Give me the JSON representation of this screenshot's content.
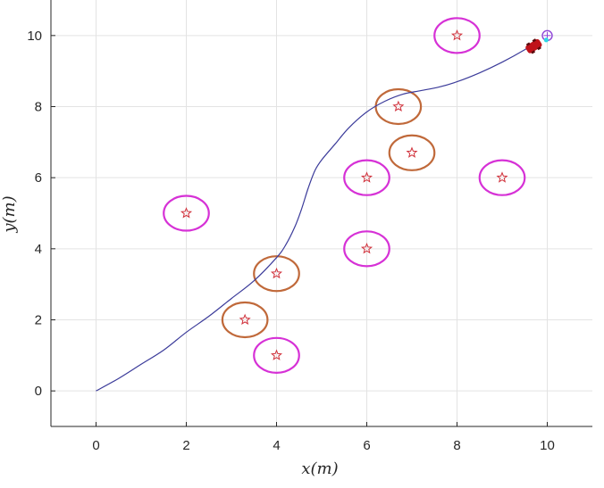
{
  "chart_data": {
    "type": "scatter",
    "title": "",
    "xlabel": "x(m)",
    "ylabel": "y(m)",
    "xlim": [
      -1,
      11
    ],
    "ylim": [
      -1,
      11
    ],
    "xticks": [
      0,
      2,
      4,
      6,
      8,
      10
    ],
    "yticks": [
      0,
      2,
      4,
      6,
      8,
      10
    ],
    "grid": true,
    "legend": "none",
    "colors": {
      "trajectory": "#3b3b9a",
      "magenta_circle": "#d631d6",
      "brown_circle": "#c0693a",
      "star": "#d0303a",
      "goal": "#8e44d8",
      "vehicle": "#c0121a",
      "vehicle_marker": "#30d7e6"
    },
    "obstacles": [
      {
        "x": 2.0,
        "y": 5.0,
        "r": 0.5,
        "type": "magenta"
      },
      {
        "x": 4.0,
        "y": 1.0,
        "r": 0.5,
        "type": "magenta"
      },
      {
        "x": 3.3,
        "y": 2.0,
        "r": 0.5,
        "type": "brown"
      },
      {
        "x": 4.0,
        "y": 3.3,
        "r": 0.5,
        "type": "brown"
      },
      {
        "x": 6.0,
        "y": 4.0,
        "r": 0.5,
        "type": "magenta"
      },
      {
        "x": 6.0,
        "y": 6.0,
        "r": 0.5,
        "type": "magenta"
      },
      {
        "x": 7.0,
        "y": 6.7,
        "r": 0.5,
        "type": "brown"
      },
      {
        "x": 6.7,
        "y": 8.0,
        "r": 0.5,
        "type": "brown"
      },
      {
        "x": 9.0,
        "y": 6.0,
        "r": 0.5,
        "type": "magenta"
      },
      {
        "x": 8.0,
        "y": 10.0,
        "r": 0.5,
        "type": "magenta"
      }
    ],
    "trajectory": {
      "x": [
        0,
        0.5,
        1.0,
        1.5,
        2.0,
        2.5,
        3.0,
        3.5,
        4.0,
        4.2,
        4.4,
        4.55,
        4.7,
        4.85,
        5.0,
        5.3,
        5.6,
        6.0,
        6.4,
        6.8,
        7.2,
        7.6,
        8.0,
        8.5,
        9.0,
        9.5,
        9.8
      ],
      "y": [
        0,
        0.35,
        0.75,
        1.15,
        1.65,
        2.1,
        2.6,
        3.1,
        3.75,
        4.1,
        4.6,
        5.1,
        5.7,
        6.2,
        6.5,
        6.95,
        7.4,
        7.85,
        8.15,
        8.35,
        8.45,
        8.55,
        8.7,
        8.95,
        9.25,
        9.6,
        9.85
      ]
    },
    "vehicle": {
      "x": 9.7,
      "y": 9.7
    },
    "goal": {
      "x": 10.0,
      "y": 10.0
    }
  }
}
